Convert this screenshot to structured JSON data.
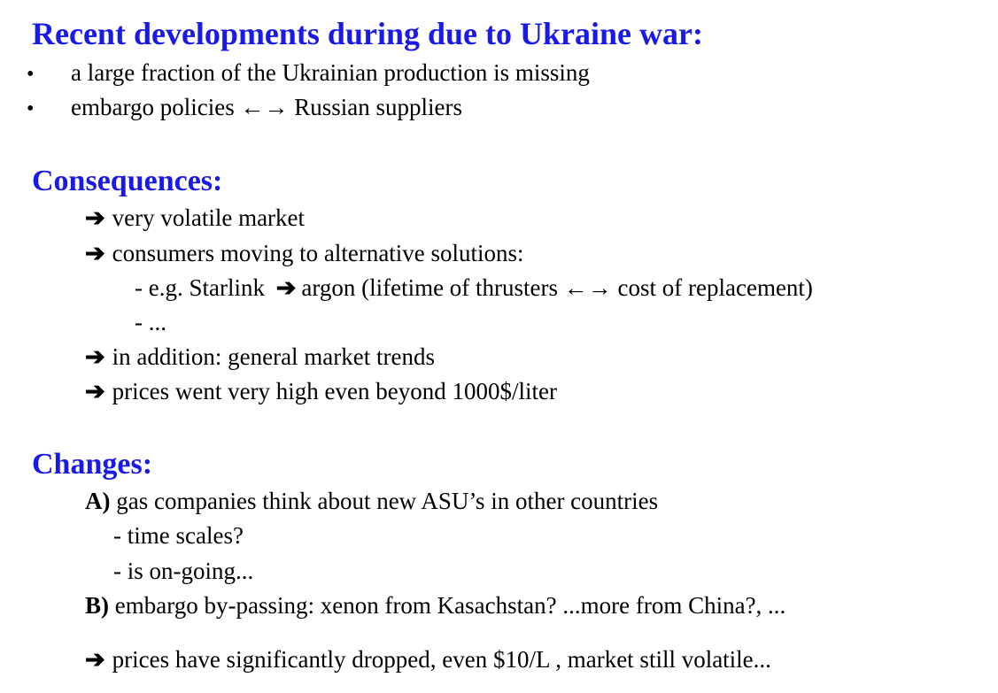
{
  "slide": {
    "title": "Recent developments during due to Ukraine war:",
    "bullets": [
      "a large fraction of the Ukrainian production is missing",
      "embargo policies ←→ Russian suppliers"
    ],
    "consequences": {
      "heading": "Consequences:",
      "items": [
        "very volatile market",
        "consumers moving to alternative solutions:",
        "- e.g. Starlink",
        "argon (lifetime of thrusters ←→ cost of replacement)",
        "- ...",
        "in addition: general market trends",
        "prices went very high even beyond 1000$/liter"
      ]
    },
    "changes": {
      "heading": "Changes:",
      "a_label": "A)",
      "a_text": "gas companies think about new ASU’s in other countries",
      "a_sub": [
        "- time scales?",
        "- is on-going..."
      ],
      "b_label": "B)",
      "b_text": "embargo by-passing: xenon from Kasachstan? ...more from China?, ...",
      "conclusion": "prices have significantly dropped, even $10/L , market still volatile..."
    },
    "icons": {
      "arrow": "➔",
      "bullet": "•"
    },
    "colors": {
      "heading": "#1a1ae6",
      "text": "#000000"
    }
  }
}
